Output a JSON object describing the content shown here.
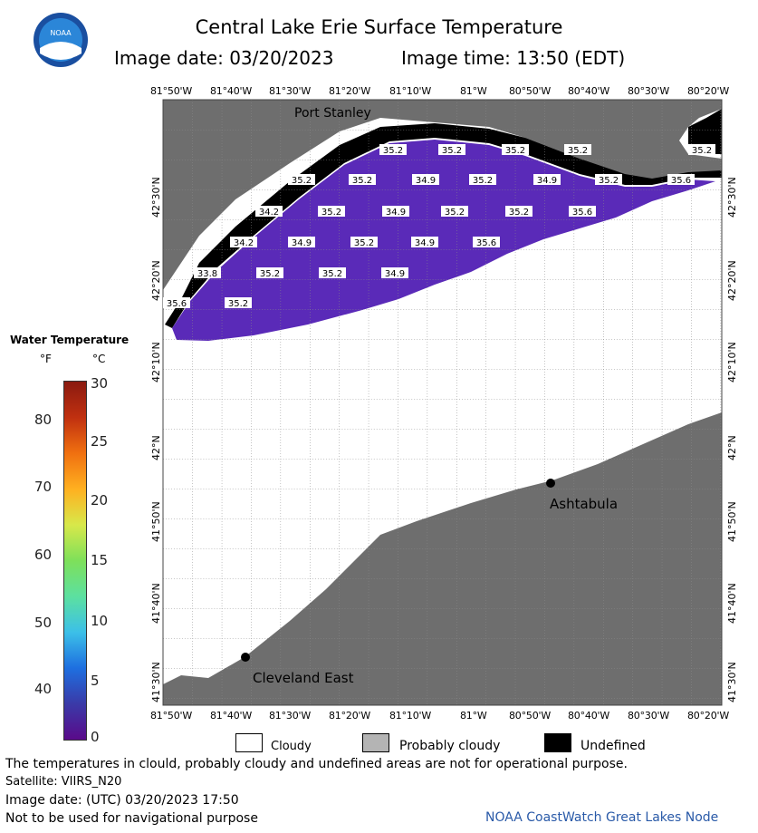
{
  "logo": {
    "text": "NOAA"
  },
  "header": {
    "title": "Central Lake Erie Surface Temperature",
    "image_date": "Image date: 03/20/2023",
    "image_time": "Image time: 13:50 (EDT)"
  },
  "axes": {
    "lon_labels": [
      "81°50'W",
      "81°40'W",
      "81°30'W",
      "81°20'W",
      "81°10'W",
      "81°W",
      "80°50'W",
      "80°40'W",
      "80°30'W",
      "80°20'W"
    ],
    "lat_labels": [
      "42°30'N",
      "42°20'N",
      "42°10'N",
      "42°N",
      "41°50'N",
      "41°40'N",
      "41°30'N"
    ]
  },
  "places": {
    "port_stanley": "Port Stanley",
    "ashtabula": "Ashtabula",
    "cleveland_east": "Cleveland East"
  },
  "temp_labels": [
    "35.2",
    "35.2",
    "35.2",
    "35.2",
    "35.2",
    "35.2",
    "34.9",
    "35.2",
    "34.9",
    "35.2",
    "35.6",
    "34.2",
    "35.2",
    "34.9",
    "35.2",
    "35.2",
    "35.6",
    "34.2",
    "34.9",
    "35.2",
    "34.9",
    "35.6",
    "33.8",
    "35.2",
    "35.2",
    "34.9",
    "35.6",
    "35.2",
    "35.2"
  ],
  "legend": {
    "title": "Water Temperature",
    "unit_f": "°F",
    "unit_c": "°C",
    "f_ticks": [
      "80",
      "70",
      "60",
      "50",
      "40"
    ],
    "c_ticks": [
      "30",
      "25",
      "20",
      "15",
      "10",
      "5",
      "0"
    ],
    "colors": [
      "#5a0a8a",
      "#3a3aa8",
      "#1e6fe0",
      "#3cc0e8",
      "#5ce0a0",
      "#7ee05a",
      "#d8e84a",
      "#ffb020",
      "#f07010",
      "#c03010",
      "#8a1a10"
    ]
  },
  "key": {
    "cloudy": "Cloudy",
    "probably_cloudy": "Probably cloudy",
    "undefined": "Undefined",
    "colors": {
      "cloudy": "#ffffff",
      "probably_cloudy": "#b4b4b4",
      "undefined": "#000000",
      "land": "#6e6e6e",
      "water": "#5a2ab8"
    }
  },
  "footer": {
    "disclaimer": "The temperatures in clould, probably cloudy and undefined areas are not for operational purpose.",
    "satellite": "Satellite: VIIRS_N20",
    "utc_date": "Image date: (UTC) 03/20/2023   17:50",
    "nav_warning": "Not to be used for navigational purpose",
    "node": "NOAA CoastWatch Great Lakes Node"
  }
}
